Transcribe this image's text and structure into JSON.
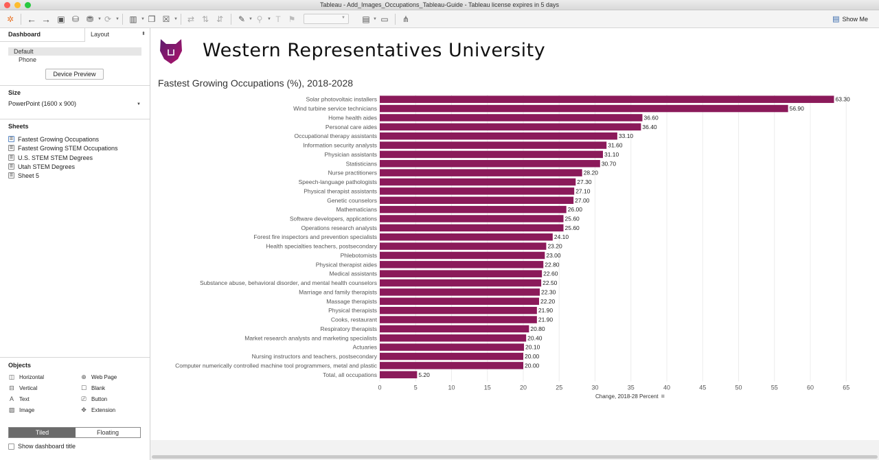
{
  "window": {
    "title": "Tableau - Add_Images_Occupations_Tableau-Guide - Tableau license expires in 5 days"
  },
  "toolbar": {
    "show_me_label": "Show Me"
  },
  "sidebar": {
    "tab_dashboard": "Dashboard",
    "tab_layout": "Layout",
    "devices": [
      "Default",
      "Phone"
    ],
    "device_preview_label": "Device Preview",
    "size_title": "Size",
    "size_value": "PowerPoint (1600 x 900)",
    "sheets_title": "Sheets",
    "sheets": [
      "Fastest Growing Occupations",
      "Fastest Growing STEM Occupations",
      "U.S. STEM STEM Degrees",
      "Utah STEM Degrees",
      "Sheet 5"
    ],
    "objects_title": "Objects",
    "objects": [
      "Horizontal",
      "Web Page",
      "Vertical",
      "Blank",
      "Text",
      "Button",
      "Image",
      "Extension"
    ],
    "tiled_label": "Tiled",
    "floating_label": "Floating",
    "show_title_label": "Show dashboard title"
  },
  "dashboard": {
    "university_name": "Western Representatives University",
    "logo_icon": "wolf-logo-icon",
    "accent_color": "#8b1a5a"
  },
  "chart_data": {
    "type": "bar",
    "orientation": "horizontal",
    "title": "Fastest Growing Occupations (%), 2018-2028",
    "xlabel": "Change, 2018-28 Percent",
    "ylabel": "",
    "xlim": [
      0,
      65
    ],
    "xticks": [
      0,
      5,
      10,
      15,
      20,
      25,
      30,
      35,
      40,
      45,
      50,
      55,
      60,
      65
    ],
    "grid": true,
    "bar_color": "#8b1a5a",
    "categories": [
      "Solar photovoltaic installers",
      "Wind turbine service technicians",
      "Home health aides",
      "Personal care aides",
      "Occupational therapy assistants",
      "Information security analysts",
      "Physician assistants",
      "Statisticians",
      "Nurse practitioners",
      "Speech-language pathologists",
      "Physical therapist assistants",
      "Genetic counselors",
      "Mathematicians",
      "Software developers, applications",
      "Operations research analysts",
      "Forest fire inspectors and prevention specialists",
      "Health specialties teachers, postsecondary",
      "Phlebotomists",
      "Physical therapist aides",
      "Medical assistants",
      "Substance abuse, behavioral disorder, and mental health counselors",
      "Marriage and family therapists",
      "Massage therapists",
      "Physical therapists",
      "Cooks, restaurant",
      "Respiratory therapists",
      "Market research analysts and marketing specialists",
      "Actuaries",
      "Nursing instructors and teachers, postsecondary",
      "Computer numerically controlled machine tool programmers, metal and plastic",
      "Total, all occupations"
    ],
    "values": [
      63.3,
      56.9,
      36.6,
      36.4,
      33.1,
      31.6,
      31.1,
      30.7,
      28.2,
      27.3,
      27.1,
      27.0,
      26.0,
      25.6,
      25.6,
      24.1,
      23.2,
      23.0,
      22.8,
      22.6,
      22.5,
      22.3,
      22.2,
      21.9,
      21.9,
      20.8,
      20.4,
      20.1,
      20.0,
      20.0,
      5.2
    ],
    "value_labels": [
      "63.30",
      "56.90",
      "36.60",
      "36.40",
      "33.10",
      "31.60",
      "31.10",
      "30.70",
      "28.20",
      "27.30",
      "27.10",
      "27.00",
      "26.00",
      "25.60",
      "25.60",
      "24.10",
      "23.20",
      "23.00",
      "22.80",
      "22.60",
      "22.50",
      "22.30",
      "22.20",
      "21.90",
      "21.90",
      "20.80",
      "20.40",
      "20.10",
      "20.00",
      "20.00",
      "5.20"
    ]
  }
}
